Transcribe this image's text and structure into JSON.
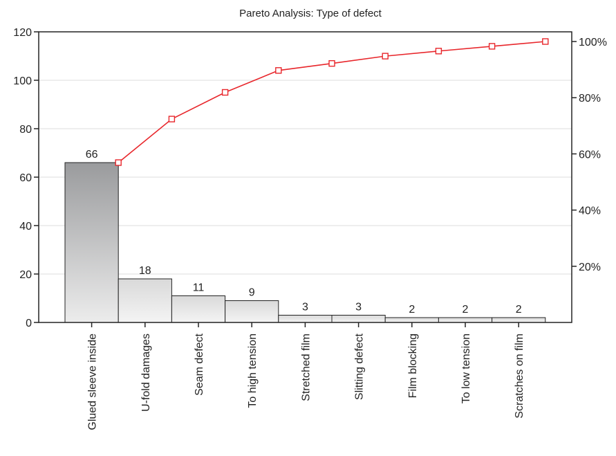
{
  "chart_data": {
    "type": "bar",
    "title": "Pareto Analysis: Type of defect",
    "xlabel": "",
    "ylabel": "",
    "categories": [
      "Glued sleeve inside",
      "U-fold damages",
      "Seam defect",
      "To high tension",
      "Stretched film",
      "Slitting defect",
      "Film blocking",
      "To low tension",
      "Scratches on film"
    ],
    "values": [
      66,
      18,
      11,
      9,
      3,
      3,
      2,
      2,
      2
    ],
    "cumulative_percent": [
      56.9,
      72.4,
      81.9,
      89.7,
      92.2,
      94.8,
      96.6,
      98.3,
      100.0
    ],
    "ylim": [
      0,
      120
    ],
    "y_ticks": [
      "0",
      "20",
      "40",
      "60",
      "80",
      "100",
      "120"
    ],
    "y2_ticks": [
      "20%",
      "40%",
      "60%",
      "80%",
      "100%"
    ],
    "y2_values": [
      20,
      40,
      60,
      80,
      100
    ],
    "grid": true,
    "colors": {
      "first_bar_dark": "#9c9d9f",
      "bar_light": "#eeeeee",
      "bar_stroke": "#222222",
      "line": "#e8262b",
      "grid": "#dddddd"
    }
  }
}
